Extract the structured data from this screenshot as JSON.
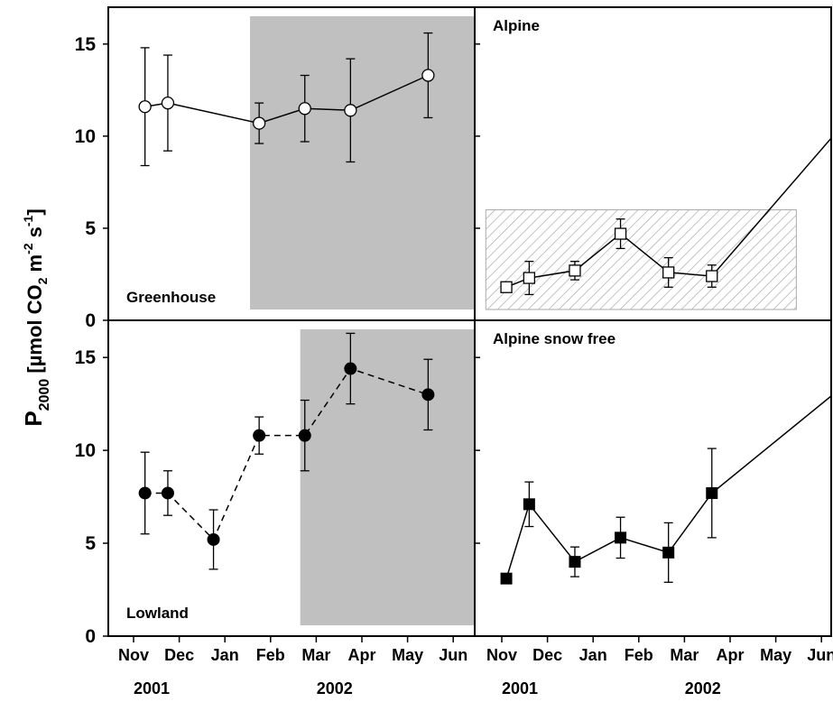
{
  "chart_data": {
    "type": "line",
    "ylabel": {
      "main": "P",
      "sub": "2000",
      "unit_open": " [µmol CO",
      "unit_sub": "2",
      "unit_m": " m",
      "unit_sup_m": "-2",
      "unit_s": " s",
      "unit_sup_s": "-1",
      "unit_close": "]"
    },
    "months": [
      "Nov",
      "Dec",
      "Jan",
      "Feb",
      "Mar",
      "Apr",
      "May",
      "Jun"
    ],
    "years": [
      "2001",
      "2002"
    ],
    "ylim": [
      0,
      17
    ],
    "yticks": [
      0,
      5,
      10,
      15
    ],
    "panels": [
      {
        "label": "Greenhouse",
        "label_position": "bottom-left",
        "marker": "open-circle",
        "line_style": "solid",
        "shaded_from_month": 2.55,
        "shaded_to_month": 7.95,
        "x": [
          0.25,
          0.75,
          2.75,
          3.75,
          4.75,
          6.45
        ],
        "values": [
          11.6,
          11.8,
          10.7,
          11.5,
          11.4,
          13.3
        ],
        "err": [
          3.2,
          2.6,
          1.1,
          1.8,
          2.8,
          2.3
        ]
      },
      {
        "label": "Alpine",
        "label_position": "top-left",
        "marker": "open-square",
        "line_style": "solid",
        "shaded_from_month": 7.4,
        "shaded_to_month": 8.2,
        "hatched_from_month": -0.35,
        "hatched_to_month": 6.45,
        "hatched_top": 6,
        "x": [
          0.1,
          0.6,
          1.6,
          2.6,
          3.65,
          4.6,
          7.6
        ],
        "values": [
          1.8,
          2.3,
          2.7,
          4.7,
          2.6,
          2.4,
          11.0
        ],
        "err": [
          0.2,
          0.9,
          0.5,
          0.8,
          0.8,
          0.6,
          0.3
        ]
      },
      {
        "label": "Lowland",
        "label_position": "bottom-left",
        "marker": "filled-circle",
        "line_style": "dashed",
        "shaded_from_month": 3.65,
        "shaded_to_month": 7.95,
        "x": [
          0.25,
          0.75,
          1.75,
          2.75,
          3.75,
          4.75,
          6.45
        ],
        "values": [
          7.7,
          7.7,
          5.2,
          10.8,
          10.8,
          14.4,
          13.0
        ],
        "err": [
          2.2,
          1.2,
          1.6,
          1.0,
          1.9,
          1.9,
          1.9
        ]
      },
      {
        "label": "Alpine snow free",
        "label_position": "top-left",
        "marker": "filled-square",
        "line_style": "solid",
        "shaded_from_month": 7.4,
        "shaded_to_month": 8.2,
        "x": [
          0.1,
          0.6,
          1.6,
          2.6,
          3.65,
          4.6,
          7.6
        ],
        "values": [
          3.1,
          7.1,
          4.0,
          5.3,
          4.5,
          7.7,
          13.7
        ],
        "err": [
          0.2,
          1.2,
          0.8,
          1.1,
          1.6,
          2.4,
          1.8
        ]
      }
    ]
  }
}
